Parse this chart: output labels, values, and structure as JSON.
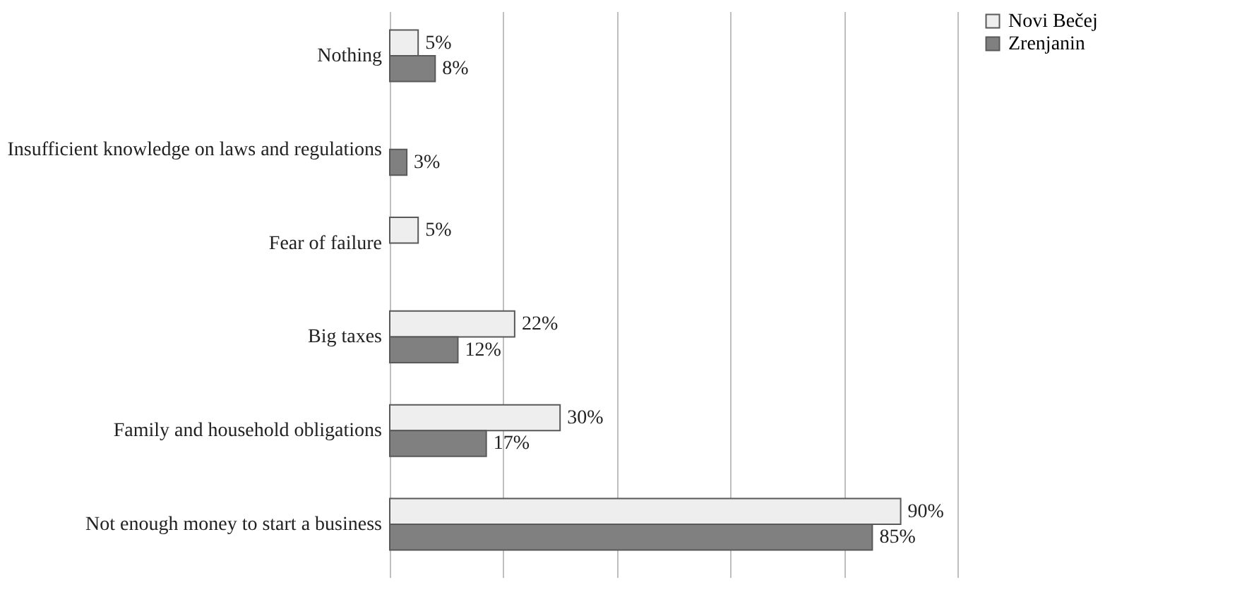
{
  "chart_data": {
    "type": "bar",
    "orientation": "horizontal",
    "categories": [
      "Nothing",
      "Insufficient knowledge on laws and regulations",
      "Fear of failure",
      "Big taxes",
      "Family and household obligations",
      "Not enough money to start a business"
    ],
    "series": [
      {
        "name": "Novi Bečej",
        "color": "#eeeeee",
        "values": [
          5,
          null,
          5,
          22,
          30,
          90
        ],
        "value_labels": [
          "5%",
          null,
          "5%",
          "22%",
          "30%",
          "90%"
        ]
      },
      {
        "name": "Zrenjanin",
        "color": "#808080",
        "values": [
          8,
          3,
          null,
          12,
          17,
          85
        ],
        "value_labels": [
          "8%",
          "3%",
          null,
          "12%",
          "17%",
          "85%"
        ]
      }
    ],
    "xlim": [
      0,
      100
    ],
    "xticks": [
      {
        "value": 0,
        "label": null
      },
      {
        "value": 20,
        "label": null
      },
      {
        "value": 40,
        "label": null
      },
      {
        "value": 60,
        "label": null
      },
      {
        "value": 80,
        "label": null
      },
      {
        "value": 100,
        "label": null
      }
    ],
    "tick_labels": "y",
    "grid": "x",
    "legend": "right"
  }
}
